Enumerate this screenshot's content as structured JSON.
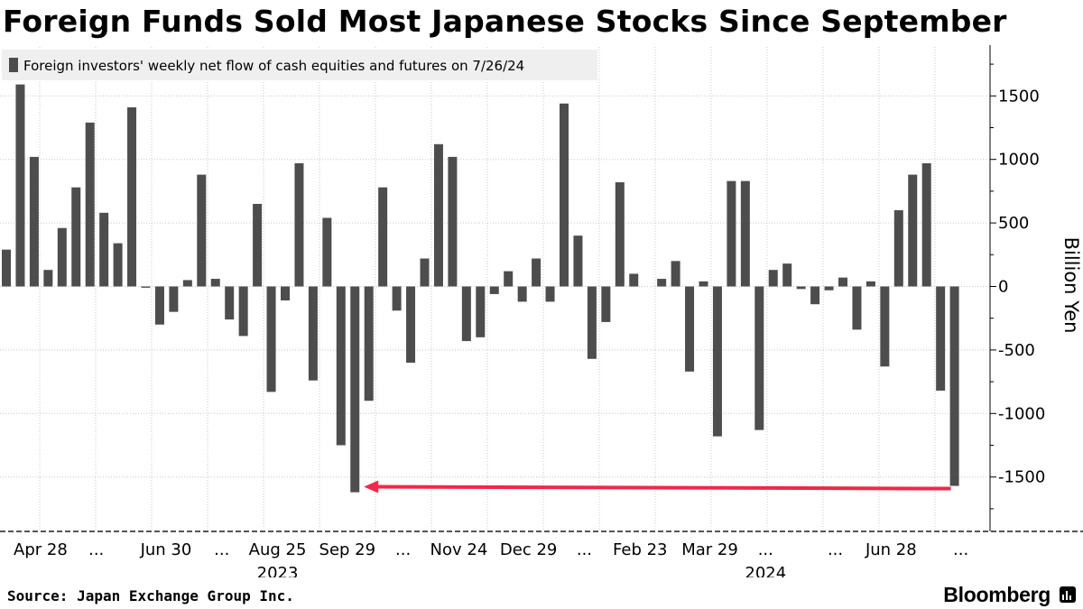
{
  "title": "Foreign Funds Sold Most Japanese Stocks Since September",
  "source": "Source: Japan Exchange Group Inc.",
  "brand": "Bloomberg",
  "colors": {
    "bar": "#4d4d4d",
    "arrow": "#f0284a",
    "grid": "#c8c8c8",
    "legend_bg": "#efefef"
  },
  "chart_data": {
    "type": "bar",
    "legend": "Foreign investors' weekly net flow of cash equities and futures on 7/26/24",
    "ylabel": "Billion Yen",
    "ylim": [
      -1900,
      1900
    ],
    "yticks": [
      1500,
      1000,
      500,
      0,
      -500,
      -1000,
      -1500
    ],
    "x_tick_labels": [
      "Apr 28",
      "...",
      "Jun 30",
      "...",
      "Aug 25",
      "Sep 29",
      "...",
      "Nov 24",
      "Dec 29",
      "...",
      "Feb 23",
      "Mar 29",
      "...",
      "...",
      "Jun 28",
      "..."
    ],
    "x_tick_label_positions": [
      2,
      6,
      11,
      15,
      19,
      24,
      28,
      32,
      37,
      41,
      45,
      50,
      54,
      59,
      63,
      68
    ],
    "year_labels": [
      {
        "text": "2023",
        "at_bar": 19
      },
      {
        "text": "2024",
        "at_bar": 54
      }
    ],
    "values": [
      290,
      1590,
      1020,
      130,
      460,
      780,
      1290,
      580,
      340,
      1410,
      -10,
      -300,
      -200,
      50,
      880,
      60,
      -260,
      -390,
      650,
      -830,
      -110,
      970,
      -740,
      540,
      -1250,
      -1620,
      -900,
      780,
      -190,
      -600,
      220,
      1120,
      1020,
      -430,
      -400,
      -60,
      120,
      -120,
      220,
      -120,
      1440,
      400,
      -570,
      -280,
      820,
      100,
      0,
      60,
      200,
      -670,
      40,
      -1180,
      830,
      830,
      -1130,
      130,
      180,
      -20,
      -140,
      -30,
      70,
      -340,
      40,
      -630,
      600,
      880,
      970,
      -820,
      -1570
    ],
    "annotation": {
      "type": "arrow",
      "from_bar": 68,
      "to_bar": 25,
      "value": -1570,
      "color": "#f0284a"
    }
  }
}
